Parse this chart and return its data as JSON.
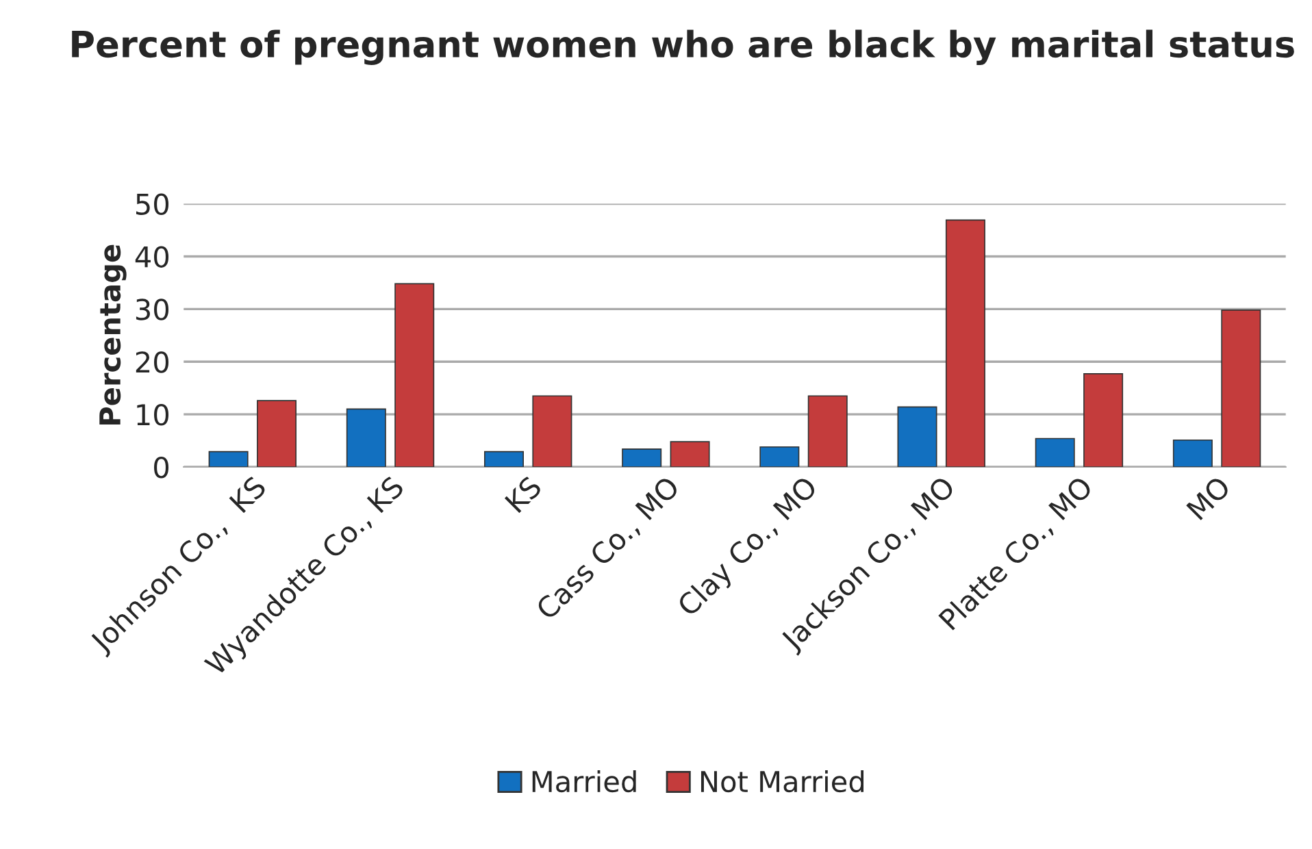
{
  "chart_data": {
    "type": "bar",
    "title": "Percent of pregnant women who are black by marital status",
    "ylabel": "Percentage",
    "categories": [
      "Johnson Co.,  KS",
      "Wyandotte Co., KS",
      "KS",
      "Cass Co., MO",
      "Clay Co., MO",
      "Jackson Co., MO",
      "Platte Co., MO",
      "MO"
    ],
    "series": [
      {
        "name": "Married",
        "color": "#1270c0",
        "values": [
          2.9,
          11.0,
          2.9,
          3.4,
          3.8,
          11.4,
          5.4,
          5.1
        ]
      },
      {
        "name": "Not Married",
        "color": "#c43c3c",
        "values": [
          12.6,
          34.8,
          13.5,
          4.8,
          13.5,
          46.9,
          17.7,
          29.8
        ]
      }
    ],
    "ylim": [
      0,
      50
    ],
    "yticks": [
      0,
      10,
      20,
      30,
      40,
      50
    ],
    "grid": "y",
    "legend": "bottom"
  }
}
